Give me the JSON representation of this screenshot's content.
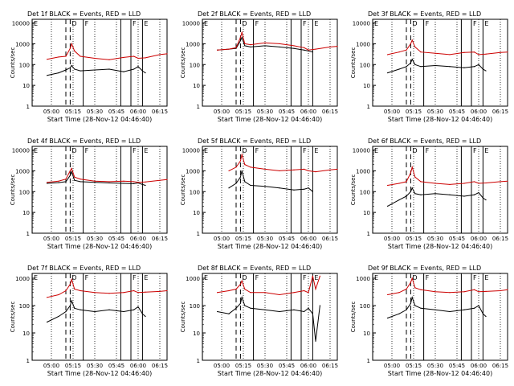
{
  "figure": {
    "xlabel": "Start Time (28-Nov-12 04:46:40)",
    "ylabel": "Counts/sec",
    "x_ticks": [
      "05:00",
      "05:15",
      "05:30",
      "05:45",
      "06:00",
      "06:15"
    ],
    "y_ticks": [
      "1",
      "10",
      "100",
      "1000",
      "10000"
    ]
  },
  "colors": {
    "events": "#000000",
    "lld": "#cc0000",
    "axes": "#000000",
    "background": "#ffffff"
  },
  "chart_data": [
    {
      "type": "line",
      "title": "Det 1f BLACK = Events, RED = LLD",
      "ymax": 15000,
      "markers": [
        "E",
        "D",
        "F",
        "F",
        "E"
      ],
      "series": [
        {
          "name": "Events",
          "x": [
            "04:57",
            "05:05",
            "05:10",
            "05:13",
            "05:14",
            "05:16",
            "05:20",
            "05:30",
            "05:40",
            "05:50",
            "05:57",
            "06:00",
            "06:03",
            "06:05"
          ],
          "values": [
            30,
            40,
            55,
            70,
            90,
            60,
            50,
            55,
            60,
            45,
            60,
            80,
            50,
            40
          ]
        },
        {
          "name": "LLD",
          "x": [
            "04:57",
            "05:05",
            "05:10",
            "05:13",
            "05:14",
            "05:16",
            "05:20",
            "05:30",
            "05:40",
            "05:50",
            "05:57",
            "06:00",
            "06:05",
            "06:15",
            "06:20"
          ],
          "values": [
            180,
            230,
            250,
            600,
            1000,
            450,
            250,
            200,
            170,
            220,
            250,
            200,
            210,
            300,
            330
          ]
        }
      ]
    },
    {
      "type": "line",
      "title": "Det 2f BLACK = Events, RED = LLD",
      "ymax": 15000,
      "markers": [
        "E",
        "D",
        "F",
        "F",
        "E"
      ],
      "series": [
        {
          "name": "Events",
          "x": [
            "04:57",
            "05:05",
            "05:10",
            "05:13",
            "05:14",
            "05:16",
            "05:20",
            "05:30",
            "05:40",
            "05:50",
            "05:57",
            "06:00",
            "06:03"
          ],
          "values": [
            500,
            550,
            600,
            1400,
            2000,
            800,
            700,
            800,
            700,
            600,
            500,
            450,
            400
          ]
        },
        {
          "name": "LLD",
          "x": [
            "04:57",
            "05:05",
            "05:10",
            "05:13",
            "05:14",
            "05:16",
            "05:20",
            "05:30",
            "05:40",
            "05:50",
            "05:57",
            "06:00",
            "06:05",
            "06:15",
            "06:20"
          ],
          "values": [
            500,
            550,
            650,
            2000,
            3500,
            1000,
            900,
            1100,
            1000,
            800,
            650,
            500,
            550,
            700,
            750
          ]
        }
      ]
    },
    {
      "type": "line",
      "title": "Det 3f BLACK = Events, RED = LLD",
      "ymax": 15000,
      "markers": [
        "E",
        "D",
        "F",
        "F",
        "E"
      ],
      "series": [
        {
          "name": "Events",
          "x": [
            "04:57",
            "05:05",
            "05:10",
            "05:13",
            "05:14",
            "05:16",
            "05:20",
            "05:30",
            "05:40",
            "05:50",
            "05:57",
            "06:00",
            "06:03",
            "06:05"
          ],
          "values": [
            40,
            60,
            80,
            120,
            180,
            100,
            80,
            90,
            80,
            70,
            80,
            100,
            60,
            50
          ]
        },
        {
          "name": "LLD",
          "x": [
            "04:57",
            "05:05",
            "05:10",
            "05:13",
            "05:14",
            "05:16",
            "05:20",
            "05:30",
            "05:40",
            "05:50",
            "05:57",
            "06:00",
            "06:05",
            "06:15",
            "06:20"
          ],
          "values": [
            300,
            400,
            500,
            1000,
            1500,
            700,
            400,
            350,
            300,
            380,
            400,
            300,
            320,
            380,
            400
          ]
        }
      ]
    },
    {
      "type": "line",
      "title": "Det 4f BLACK = Events, RED = LLD",
      "ymax": 15000,
      "markers": [
        "E",
        "D",
        "F",
        "F",
        "E"
      ],
      "series": [
        {
          "name": "Events",
          "x": [
            "04:57",
            "05:05",
            "05:10",
            "05:13",
            "05:14",
            "05:16",
            "05:20",
            "05:30",
            "05:40",
            "05:50",
            "05:57",
            "06:00",
            "06:03",
            "06:05"
          ],
          "values": [
            250,
            270,
            300,
            600,
            900,
            350,
            300,
            280,
            260,
            250,
            240,
            260,
            220,
            200
          ]
        },
        {
          "name": "LLD",
          "x": [
            "04:57",
            "05:05",
            "05:10",
            "05:13",
            "05:14",
            "05:16",
            "05:20",
            "05:30",
            "05:40",
            "05:50",
            "05:57",
            "06:00",
            "06:05",
            "06:15",
            "06:20"
          ],
          "values": [
            280,
            320,
            400,
            1000,
            1300,
            500,
            400,
            320,
            300,
            320,
            300,
            280,
            290,
            350,
            380
          ]
        }
      ]
    },
    {
      "type": "line",
      "title": "Det 5f BLACK = Events, RED = LLD",
      "ymax": 15000,
      "markers": [
        "E",
        "D",
        "F",
        "F",
        "E"
      ],
      "series": [
        {
          "name": "Events",
          "x": [
            "05:05",
            "05:10",
            "05:13",
            "05:14",
            "05:16",
            "05:20",
            "05:30",
            "05:40",
            "05:50",
            "05:57",
            "06:00",
            "06:03"
          ],
          "values": [
            150,
            250,
            500,
            1000,
            300,
            200,
            180,
            150,
            120,
            130,
            150,
            100
          ]
        },
        {
          "name": "LLD",
          "x": [
            "05:05",
            "05:10",
            "05:13",
            "05:14",
            "05:16",
            "05:20",
            "05:30",
            "05:40",
            "05:50",
            "05:57",
            "06:00",
            "06:05",
            "06:15",
            "06:20"
          ],
          "values": [
            1000,
            1500,
            3000,
            6000,
            2000,
            1500,
            1200,
            1000,
            1100,
            1200,
            1000,
            900,
            1100,
            1200
          ]
        }
      ]
    },
    {
      "type": "line",
      "title": "Det 6f BLACK = Events, RED = LLD",
      "ymax": 15000,
      "markers": [
        "E",
        "D",
        "F",
        "F",
        "E"
      ],
      "series": [
        {
          "name": "Events",
          "x": [
            "04:57",
            "05:05",
            "05:10",
            "05:13",
            "05:14",
            "05:16",
            "05:20",
            "05:30",
            "05:40",
            "05:50",
            "05:57",
            "06:00",
            "06:03",
            "06:05"
          ],
          "values": [
            20,
            40,
            60,
            100,
            150,
            80,
            70,
            80,
            70,
            60,
            70,
            90,
            50,
            40
          ]
        },
        {
          "name": "LLD",
          "x": [
            "04:57",
            "05:05",
            "05:10",
            "05:13",
            "05:14",
            "05:16",
            "05:20",
            "05:30",
            "05:40",
            "05:50",
            "05:57",
            "06:00",
            "06:05",
            "06:15",
            "06:20"
          ],
          "values": [
            200,
            250,
            300,
            800,
            1500,
            500,
            300,
            250,
            220,
            250,
            300,
            250,
            260,
            300,
            320
          ]
        }
      ]
    },
    {
      "type": "line",
      "title": "Det 7f BLACK = Events, RED = LLD",
      "ymax": 1500,
      "markers": [
        "E",
        "D",
        "F",
        "F",
        "E"
      ],
      "series": [
        {
          "name": "Events",
          "x": [
            "04:57",
            "05:05",
            "05:10",
            "05:13",
            "05:14",
            "05:16",
            "05:20",
            "05:30",
            "05:40",
            "05:50",
            "05:57",
            "06:00",
            "06:03",
            "06:05"
          ],
          "values": [
            25,
            40,
            60,
            100,
            150,
            80,
            70,
            60,
            70,
            60,
            70,
            90,
            50,
            40
          ]
        },
        {
          "name": "LLD",
          "x": [
            "04:57",
            "05:05",
            "05:10",
            "05:13",
            "05:14",
            "05:16",
            "05:20",
            "05:30",
            "05:40",
            "05:50",
            "05:57",
            "06:00",
            "06:05",
            "06:15",
            "06:20"
          ],
          "values": [
            200,
            250,
            350,
            600,
            900,
            400,
            350,
            300,
            280,
            300,
            350,
            300,
            310,
            330,
            350
          ]
        }
      ]
    },
    {
      "type": "line",
      "title": "Det 8f BLACK = Events, RED = LLD",
      "ymax": 1500,
      "markers": [
        "E",
        "D",
        "F",
        "F",
        "E"
      ],
      "series": [
        {
          "name": "Events",
          "x": [
            "04:57",
            "05:05",
            "05:10",
            "05:13",
            "05:14",
            "05:16",
            "05:20",
            "05:30",
            "05:40",
            "05:50",
            "05:57",
            "06:00",
            "06:03",
            "06:05",
            "06:08"
          ],
          "values": [
            60,
            50,
            80,
            120,
            200,
            100,
            80,
            70,
            60,
            70,
            60,
            80,
            50,
            5,
            100
          ]
        },
        {
          "name": "LLD",
          "x": [
            "04:57",
            "05:05",
            "05:10",
            "05:13",
            "05:14",
            "05:16",
            "05:20",
            "05:30",
            "05:40",
            "05:50",
            "05:57",
            "06:00",
            "06:03",
            "06:05",
            "06:08"
          ],
          "values": [
            300,
            350,
            400,
            600,
            800,
            400,
            300,
            300,
            250,
            300,
            350,
            300,
            1200,
            400,
            1200
          ]
        }
      ]
    },
    {
      "type": "line",
      "title": "Det 9f BLACK = Events, RED = LLD",
      "ymax": 1500,
      "markers": [
        "E",
        "D",
        "F",
        "F",
        "E"
      ],
      "series": [
        {
          "name": "Events",
          "x": [
            "04:57",
            "05:05",
            "05:10",
            "05:13",
            "05:14",
            "05:16",
            "05:20",
            "05:30",
            "05:40",
            "05:50",
            "05:57",
            "06:00",
            "06:03",
            "06:05"
          ],
          "values": [
            35,
            50,
            70,
            120,
            200,
            100,
            80,
            70,
            60,
            70,
            80,
            100,
            50,
            40
          ]
        },
        {
          "name": "LLD",
          "x": [
            "04:57",
            "05:05",
            "05:10",
            "05:13",
            "05:14",
            "05:16",
            "05:20",
            "05:30",
            "05:40",
            "05:50",
            "05:57",
            "06:00",
            "06:05",
            "06:15",
            "06:20"
          ],
          "values": [
            250,
            300,
            400,
            700,
            1000,
            450,
            380,
            320,
            300,
            320,
            380,
            320,
            330,
            350,
            380
          ]
        }
      ]
    }
  ]
}
